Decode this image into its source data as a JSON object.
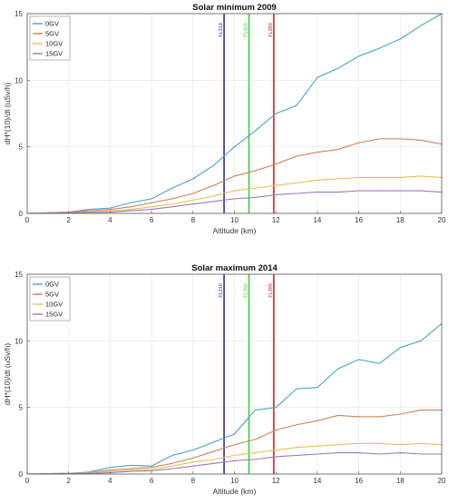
{
  "chart_data": [
    {
      "type": "line",
      "title": "Solar minimum 2009",
      "xlabel": "Altitude (km)",
      "ylabel": "dH*(10)/dt (uSv/h)",
      "xlim": [
        0,
        20
      ],
      "ylim": [
        0,
        15
      ],
      "xticks": [
        0,
        2,
        4,
        6,
        8,
        10,
        12,
        14,
        16,
        18,
        20
      ],
      "yticks": [
        0,
        5,
        10,
        15
      ],
      "grid": true,
      "legend_position": "top-left",
      "x": [
        0,
        1,
        2,
        3,
        4,
        5,
        6,
        7,
        8,
        9,
        10,
        11,
        12,
        13,
        14,
        15,
        16,
        17,
        18,
        19,
        20
      ],
      "series": [
        {
          "name": "0GV",
          "color": "#4aa3c8",
          "values": [
            0,
            0.05,
            0.1,
            0.3,
            0.4,
            0.8,
            1.1,
            1.9,
            2.6,
            3.6,
            5.0,
            6.2,
            7.5,
            8.1,
            10.2,
            10.9,
            11.8,
            12.4,
            13.1,
            14.1,
            15.0
          ]
        },
        {
          "name": "5GV",
          "color": "#c9825a",
          "values": [
            0,
            0.05,
            0.1,
            0.2,
            0.3,
            0.5,
            0.8,
            1.1,
            1.5,
            2.1,
            2.8,
            3.2,
            3.7,
            4.3,
            4.6,
            4.8,
            5.3,
            5.6,
            5.6,
            5.5,
            5.2
          ]
        },
        {
          "name": "10GV",
          "color": "#e8c058",
          "values": [
            0,
            0.03,
            0.06,
            0.1,
            0.2,
            0.3,
            0.5,
            0.7,
            1.0,
            1.3,
            1.7,
            1.9,
            2.1,
            2.3,
            2.5,
            2.6,
            2.7,
            2.7,
            2.7,
            2.8,
            2.7
          ]
        },
        {
          "name": "15GV",
          "color": "#9b7bb5",
          "values": [
            0,
            0.02,
            0.04,
            0.08,
            0.1,
            0.2,
            0.3,
            0.5,
            0.7,
            0.9,
            1.1,
            1.2,
            1.4,
            1.5,
            1.6,
            1.6,
            1.7,
            1.7,
            1.7,
            1.7,
            1.6
          ]
        }
      ],
      "annotations": [
        {
          "label": "FL310",
          "x": 9.5,
          "color": "#2b2bbf"
        },
        {
          "label": "FL350",
          "x": 10.7,
          "color": "#3ccf3c"
        },
        {
          "label": "FL390",
          "x": 11.9,
          "color": "#c62828"
        }
      ]
    },
    {
      "type": "line",
      "title": "Solar maximum 2014",
      "xlabel": "Altitude (km)",
      "ylabel": "dH*(10)/dt (uSv/h)",
      "xlim": [
        0,
        20
      ],
      "ylim": [
        0,
        15
      ],
      "xticks": [
        0,
        2,
        4,
        6,
        8,
        10,
        12,
        14,
        16,
        18,
        20
      ],
      "yticks": [
        0,
        5,
        10,
        15
      ],
      "grid": true,
      "legend_position": "top-left",
      "x": [
        0,
        1,
        2,
        3,
        4,
        5,
        6,
        7,
        8,
        9,
        10,
        11,
        12,
        13,
        14,
        15,
        16,
        17,
        18,
        19,
        20
      ],
      "series": [
        {
          "name": "0GV",
          "color": "#4aa3c8",
          "values": [
            0,
            0.03,
            0.06,
            0.15,
            0.5,
            0.65,
            0.6,
            1.4,
            1.8,
            2.4,
            3.0,
            4.8,
            5.0,
            6.4,
            6.5,
            7.9,
            8.6,
            8.3,
            9.5,
            10.0,
            11.3
          ]
        },
        {
          "name": "5GV",
          "color": "#c9825a",
          "values": [
            0,
            0.03,
            0.05,
            0.1,
            0.3,
            0.4,
            0.5,
            0.8,
            1.2,
            1.7,
            2.2,
            2.6,
            3.3,
            3.7,
            4.0,
            4.4,
            4.3,
            4.3,
            4.5,
            4.8,
            4.8
          ]
        },
        {
          "name": "10GV",
          "color": "#e8c058",
          "values": [
            0,
            0.02,
            0.04,
            0.08,
            0.2,
            0.3,
            0.35,
            0.6,
            0.9,
            1.1,
            1.4,
            1.6,
            1.8,
            2.0,
            2.1,
            2.2,
            2.3,
            2.3,
            2.2,
            2.3,
            2.2
          ]
        },
        {
          "name": "15GV",
          "color": "#9b7bb5",
          "values": [
            0,
            0.01,
            0.03,
            0.05,
            0.1,
            0.2,
            0.25,
            0.4,
            0.6,
            0.8,
            1.0,
            1.1,
            1.3,
            1.4,
            1.5,
            1.6,
            1.6,
            1.5,
            1.6,
            1.5,
            1.5
          ]
        }
      ],
      "annotations": [
        {
          "label": "FL310",
          "x": 9.5,
          "color": "#2b2bbf"
        },
        {
          "label": "FL350",
          "x": 10.7,
          "color": "#3ccf3c"
        },
        {
          "label": "FL390",
          "x": 11.9,
          "color": "#c62828"
        }
      ]
    }
  ]
}
